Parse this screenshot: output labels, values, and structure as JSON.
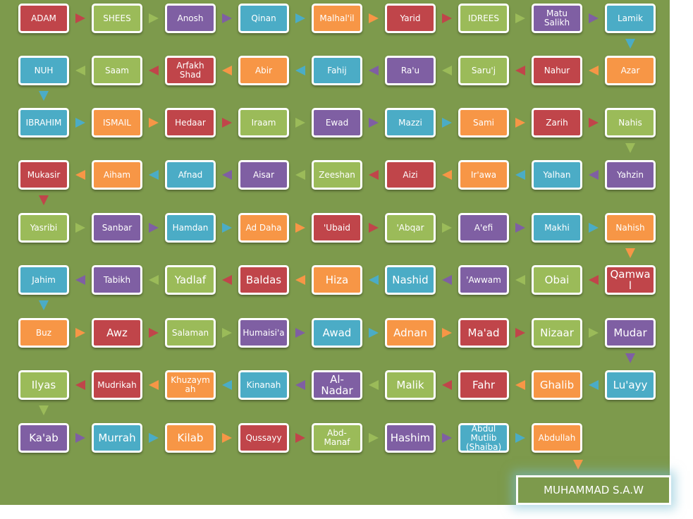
{
  "title": "",
  "colors": {
    "red": "#c0454a",
    "green": "#9bbb59",
    "purple": "#7f5fa3",
    "blue": "#4bacc6",
    "orange": "#f79646",
    "background": "#7d9a4c"
  },
  "rows": [
    [
      "ADAM",
      "SHEES",
      "Anosh",
      "Qinan",
      "Malhal'il",
      "Yarid",
      "IDREES",
      "Matu Salikh",
      "Lamik"
    ],
    [
      "Azar",
      "Nahur",
      "Saru'j",
      "Ra'u",
      "Fahij",
      "Abir",
      "Arfakh Shad",
      "Saam",
      "NUH"
    ],
    [
      "IBRAHIM",
      "ISMAIL",
      "Hedaar",
      "Iraam",
      "Ewad",
      "Mazzi",
      "Sami",
      "Zarih",
      "Nahis"
    ],
    [
      "Yahzin",
      "Yalhan",
      "Ir'awa",
      "Aizi",
      "Zeeshan",
      "Aisar",
      "Afnad",
      "Aiham",
      "Mukasir"
    ],
    [
      "Yasribi",
      "Sanbar",
      "Hamdan",
      "Ad Daha",
      "'Ubaid",
      "'Abqar",
      "A'efi",
      "Makhi",
      "Nahish"
    ],
    [
      "Qamwa l",
      "Obai",
      "'Awwam",
      "Nashid",
      "Hiza",
      "Baldas",
      "Yadlaf",
      "Tabikh",
      "Jahim"
    ],
    [
      "Buz",
      "Awz",
      "Salaman",
      "Humaisi'a",
      "Awad",
      "Adnan",
      "Ma'ad",
      "Nizaar",
      "Mudar"
    ],
    [
      "Lu'ayy",
      "Ghalib",
      "Fahr",
      "Malik",
      "Al-Nadar",
      "Kinanah",
      "Khuzaymah",
      "Mudrikah",
      "Ilyas"
    ],
    [
      "Ka'ab",
      "Murrah",
      "Kilab",
      "Qussayy",
      "Abd-Manaf",
      "Hashim",
      "Abdul Mutlib (Shaiba)",
      "Abdullah"
    ]
  ],
  "row_colors": [
    [
      "red",
      "green",
      "purple",
      "blue",
      "orange",
      "red",
      "green",
      "purple",
      "blue"
    ],
    [
      "blue",
      "green",
      "red",
      "orange",
      "blue",
      "purple",
      "green",
      "red",
      "orange"
    ],
    [
      "blue",
      "orange",
      "red",
      "green",
      "purple",
      "blue",
      "orange",
      "red",
      "green"
    ],
    [
      "red",
      "orange",
      "blue",
      "purple",
      "green",
      "red",
      "orange",
      "blue",
      "purple"
    ],
    [
      "green",
      "purple",
      "blue",
      "orange",
      "red",
      "green",
      "purple",
      "blue",
      "orange"
    ],
    [
      "blue",
      "purple",
      "green",
      "red",
      "orange",
      "blue",
      "purple",
      "green",
      "red"
    ],
    [
      "orange",
      "red",
      "green",
      "purple",
      "blue",
      "orange",
      "red",
      "green",
      "purple"
    ],
    [
      "green",
      "red",
      "orange",
      "blue",
      "purple",
      "green",
      "red",
      "orange",
      "blue"
    ],
    [
      "purple",
      "blue",
      "orange",
      "red",
      "green",
      "purple",
      "blue",
      "orange"
    ]
  ],
  "large_text": [
    [],
    [],
    [],
    [],
    [],
    [
      "Qamwa l",
      "Obai",
      "Nashid",
      "Hiza",
      "Baldas",
      "Yadlaf"
    ],
    [
      "Awz",
      "Awad",
      "Adnan",
      "Ma'ad",
      "Nizaar",
      "Mudar"
    ],
    [
      "Lu'ayy",
      "Ghalib",
      "Fahr",
      "Malik",
      "Al-Nadar",
      "Ilyas"
    ],
    [
      "Ka'ab",
      "Murrah",
      "Kilab",
      "Hashim"
    ]
  ],
  "final": "MUHAMMAD S.A.W"
}
